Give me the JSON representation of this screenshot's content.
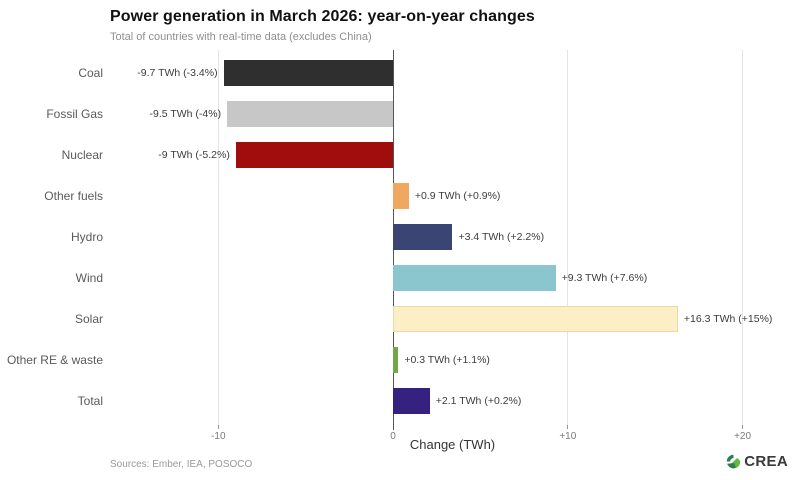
{
  "footer": {
    "sources": "Sources: Ember, IEA, POSOCO",
    "brand": "CREA",
    "brand_green_dark": "#2e7d4f",
    "brand_green_light": "#63b744"
  },
  "chart_data": {
    "type": "bar",
    "orientation": "horizontal",
    "title": "Power generation in March 2026: year-on-year changes",
    "subtitle": "Total of countries with real-time data (excludes China)",
    "xlabel": "Change (TWh)",
    "categories": [
      "Coal",
      "Fossil Gas",
      "Nuclear",
      "Other fuels",
      "Hydro",
      "Wind",
      "Solar",
      "Other RE & waste",
      "Total"
    ],
    "values": [
      -9.7,
      -9.5,
      -9,
      0.9,
      3.4,
      9.3,
      16.3,
      0.3,
      2.1
    ],
    "value_labels": [
      "-9.7 TWh (-3.4%)",
      "-9.5 TWh (-4%)",
      "-9 TWh (-5.2%)",
      "+0.9 TWh (+0.9%)",
      "+3.4 TWh (+2.2%)",
      "+9.3 TWh (+7.6%)",
      "+16.3 TWh (+15%)",
      "+0.3 TWh (+1.1%)",
      "+2.1 TWh (+0.2%)"
    ],
    "colors": [
      "#2f2f2f",
      "#c7c7c7",
      "#a00d0d",
      "#f0a75f",
      "#3b4574",
      "#8bc5ce",
      "#fcefc5",
      "#74a74a",
      "#342180"
    ],
    "bar_borders": [
      null,
      null,
      null,
      null,
      null,
      null,
      "#e9d9a6",
      null,
      null
    ],
    "xlim": [
      -16.2,
      23
    ],
    "x_ticks": [
      {
        "value": -10,
        "label": "-10"
      },
      {
        "value": 0,
        "label": "0"
      },
      {
        "value": 10,
        "label": "+10"
      },
      {
        "value": 20,
        "label": "+20"
      }
    ],
    "grid": "vertical-light",
    "legend": "none"
  }
}
